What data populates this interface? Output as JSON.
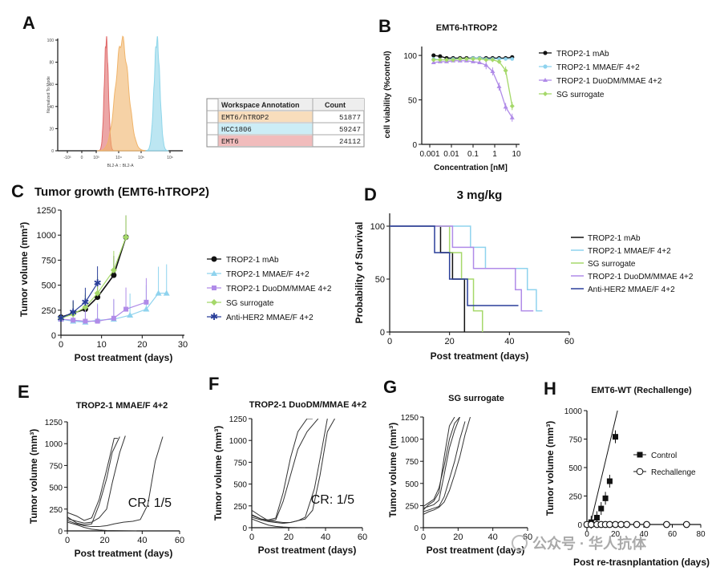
{
  "colors": {
    "black": "#111111",
    "cyan": "#8fd3ee",
    "purple": "#b08be8",
    "green": "#a5d86a",
    "navy": "#2a3f9a",
    "red": "#e06a6a",
    "orange": "#f0b46a",
    "lightblue": "#8fd6ea"
  },
  "labels": {
    "A": "A",
    "B": "B",
    "C": "C",
    "D": "D",
    "E": "E",
    "F": "F",
    "G": "G",
    "H": "H"
  },
  "watermark": "公众号 · 华人抗体",
  "chart_data": [
    {
      "id": "A",
      "type": "histogram",
      "ylabel": "Normalized To Mode",
      "xlabel": "BL2-A :: BL2-A",
      "yticks": [
        "0",
        "20",
        "40",
        "60",
        "80",
        "100"
      ],
      "xticks": [
        "-10³",
        "0",
        "10³",
        "10⁴",
        "10⁵",
        "10⁶"
      ],
      "table": {
        "headers": [
          "Workspace Annotation",
          "Count"
        ],
        "rows": [
          {
            "name": "EMT6/hTROP2",
            "count": "51877",
            "color": "#f0b46a"
          },
          {
            "name": "HCC1806",
            "count": "59247",
            "color": "#8fd6ea"
          },
          {
            "name": "EMT6",
            "count": "24112",
            "color": "#e06a6a"
          }
        ]
      },
      "peaks": [
        {
          "name": "EMT6",
          "center_log": 3.45,
          "width_log": 0.09,
          "color": "#e06a6a"
        },
        {
          "name": "EMT6/hTROP2",
          "center_log": 4.15,
          "width_log": 0.28,
          "color": "#f0b46a"
        },
        {
          "name": "HCC1806",
          "center_log": 5.55,
          "width_log": 0.1,
          "color": "#8fd6ea"
        }
      ]
    },
    {
      "id": "B",
      "type": "line",
      "title": "EMT6-hTROP2",
      "xlabel": "Concentration [nM]",
      "ylabel": "cell viability (%control)",
      "xscale": "log",
      "xlim": [
        0.001,
        10
      ],
      "ylim": [
        0,
        110
      ],
      "xticks": [
        "0.001",
        "0.01",
        "0.1",
        "1",
        "10"
      ],
      "yticks": [
        "0",
        "50",
        "100"
      ],
      "x": [
        0.0015,
        0.003,
        0.006,
        0.012,
        0.025,
        0.05,
        0.1,
        0.2,
        0.4,
        0.8,
        1.6,
        3.2,
        6.4
      ],
      "series": [
        {
          "name": "TROP2-1 mAb",
          "color": "#111111",
          "values": [
            100,
            99,
            97,
            97,
            97,
            97,
            97,
            97,
            97,
            97,
            97,
            97,
            98
          ]
        },
        {
          "name": "TROP2-1 MMAE/F 4+2",
          "color": "#8fd3ee",
          "values": [
            96,
            95,
            95,
            96,
            96,
            96,
            97,
            97,
            96,
            96,
            96,
            96,
            96
          ]
        },
        {
          "name": "TROP2-1 DuoDM/MMAE 4+2",
          "color": "#b08be8",
          "values": [
            92,
            93,
            93,
            94,
            94,
            94,
            93,
            92,
            89,
            82,
            65,
            42,
            30
          ]
        },
        {
          "name": "SG surrogate",
          "color": "#a5d86a",
          "values": [
            95,
            95,
            95,
            95,
            96,
            96,
            96,
            96,
            95,
            95,
            93,
            83,
            43
          ]
        }
      ]
    },
    {
      "id": "C",
      "type": "line",
      "title": "Tumor growth (EMT6-hTROP2)",
      "xlabel": "Post treatment (days)",
      "ylabel": "Tumor volume (mm³)",
      "xlim": [
        0,
        30
      ],
      "ylim": [
        0,
        1250
      ],
      "xticks": [
        "0",
        "10",
        "20",
        "30"
      ],
      "yticks": [
        "0",
        "250",
        "500",
        "750",
        "1000",
        "1250"
      ],
      "series": [
        {
          "name": "TROP2-1 mAb",
          "color": "#111111",
          "x": [
            0,
            3,
            6,
            9,
            13,
            16
          ],
          "values": [
            180,
            220,
            260,
            380,
            600,
            980
          ]
        },
        {
          "name": "TROP2-1 MMAE/F 4+2",
          "color": "#8fd3ee",
          "x": [
            0,
            3,
            6,
            9,
            13,
            17,
            21,
            24,
            26
          ],
          "values": [
            160,
            140,
            130,
            150,
            160,
            200,
            260,
            420,
            420
          ]
        },
        {
          "name": "TROP2-1 DuoDM/MMAE 4+2",
          "color": "#b08be8",
          "x": [
            0,
            3,
            6,
            9,
            13,
            16,
            21
          ],
          "values": [
            160,
            150,
            140,
            140,
            170,
            260,
            330
          ]
        },
        {
          "name": "SG surrogate",
          "color": "#a5d86a",
          "x": [
            0,
            3,
            6,
            9,
            13,
            16
          ],
          "values": [
            170,
            210,
            280,
            420,
            650,
            980
          ]
        },
        {
          "name": "Anti-HER2 MMAE/F 4+2",
          "color": "#2a3f9a",
          "x": [
            0,
            3,
            6,
            9
          ],
          "values": [
            170,
            230,
            330,
            520
          ]
        }
      ]
    },
    {
      "id": "D",
      "type": "survival",
      "title": "3  mg/kg",
      "xlabel": "Post treatment (days)",
      "ylabel": "Probability of Survival",
      "xlim": [
        0,
        60
      ],
      "ylim": [
        0,
        100
      ],
      "xticks": [
        "0",
        "20",
        "40",
        "60"
      ],
      "yticks": [
        "0",
        "50",
        "100"
      ],
      "series": [
        {
          "name": "TROP2-1 mAb",
          "color": "#111111",
          "steps": [
            [
              0,
              100
            ],
            [
              17,
              100
            ],
            [
              17,
              75
            ],
            [
              21,
              75
            ],
            [
              21,
              50
            ],
            [
              25,
              50
            ],
            [
              25,
              0
            ]
          ]
        },
        {
          "name": "TROP2-1 MMAE/F 4+2",
          "color": "#8fd3ee",
          "steps": [
            [
              0,
              100
            ],
            [
              27,
              100
            ],
            [
              27,
              80
            ],
            [
              32,
              80
            ],
            [
              32,
              60
            ],
            [
              39,
              60
            ],
            [
              39,
              60
            ],
            [
              46,
              60
            ],
            [
              46,
              40
            ],
            [
              49,
              40
            ],
            [
              49,
              20
            ],
            [
              51,
              20
            ]
          ]
        },
        {
          "name": "SG surrogate",
          "color": "#a5d86a",
          "steps": [
            [
              0,
              100
            ],
            [
              20,
              100
            ],
            [
              20,
              75
            ],
            [
              24,
              75
            ],
            [
              24,
              50
            ],
            [
              28,
              50
            ],
            [
              28,
              20
            ],
            [
              31,
              20
            ],
            [
              31,
              0
            ]
          ]
        },
        {
          "name": "TROP2-1 DuoDM/MMAE 4+2",
          "color": "#b08be8",
          "steps": [
            [
              0,
              100
            ],
            [
              21,
              100
            ],
            [
              21,
              80
            ],
            [
              28,
              80
            ],
            [
              28,
              60
            ],
            [
              42,
              60
            ],
            [
              42,
              40
            ],
            [
              44,
              40
            ],
            [
              44,
              20
            ],
            [
              48,
              20
            ]
          ]
        },
        {
          "name": "Anti-HER2 MMAE/F 4+2",
          "color": "#2a3f9a",
          "steps": [
            [
              0,
              100
            ],
            [
              15,
              100
            ],
            [
              15,
              75
            ],
            [
              20,
              75
            ],
            [
              20,
              50
            ],
            [
              26,
              50
            ],
            [
              26,
              25
            ],
            [
              43,
              25
            ]
          ]
        }
      ]
    },
    {
      "id": "E",
      "type": "line",
      "title": "TROP2-1 MMAE/F 4+2",
      "xlabel": "Post treatment (days)",
      "ylabel": "Tumor volume (mm³)",
      "xlim": [
        0,
        60
      ],
      "ylim": [
        0,
        1250
      ],
      "xticks": [
        "0",
        "20",
        "40",
        "60"
      ],
      "yticks": [
        "0",
        "250",
        "500",
        "750",
        "1000",
        "1250"
      ],
      "annotation": "CR: 1/5",
      "lines": [
        {
          "x": [
            0,
            5,
            9,
            13,
            17,
            21,
            25,
            27
          ],
          "values": [
            210,
            170,
            120,
            150,
            360,
            700,
            1060,
            1060
          ]
        },
        {
          "x": [
            0,
            5,
            9,
            13,
            17,
            21,
            24,
            28
          ],
          "values": [
            160,
            90,
            70,
            80,
            300,
            600,
            900,
            1080
          ]
        },
        {
          "x": [
            0,
            5,
            9,
            13,
            17,
            21,
            24,
            28,
            31
          ],
          "values": [
            140,
            110,
            90,
            100,
            150,
            250,
            550,
            900,
            1090
          ]
        },
        {
          "x": [
            0,
            5,
            9,
            13,
            17,
            21,
            25,
            30,
            35,
            39,
            43,
            47,
            51
          ],
          "values": [
            120,
            80,
            60,
            50,
            50,
            60,
            80,
            100,
            110,
            130,
            300,
            800,
            1080
          ]
        },
        {
          "x": [
            0,
            5,
            9,
            13,
            17,
            21,
            25,
            29,
            33,
            37
          ],
          "values": [
            100,
            70,
            40,
            20,
            10,
            5,
            3,
            2,
            1,
            0
          ]
        }
      ]
    },
    {
      "id": "F",
      "type": "line",
      "title": "TROP2-1 DuoDM/MMAE 4+2",
      "xlabel": "Post treatment (days)",
      "ylabel": "Tumor volume (mm³)",
      "xlim": [
        0,
        60
      ],
      "ylim": [
        0,
        1250
      ],
      "xticks": [
        "0",
        "20",
        "40",
        "60"
      ],
      "yticks": [
        "0",
        "250",
        "500",
        "750",
        "1000",
        "1250"
      ],
      "annotation": "CR: 1/5",
      "lines": [
        {
          "x": [
            0,
            5,
            9,
            13,
            17,
            21,
            25,
            30,
            36
          ],
          "values": [
            200,
            130,
            80,
            90,
            300,
            600,
            900,
            1100,
            1250
          ]
        },
        {
          "x": [
            0,
            5,
            9,
            13,
            17,
            21,
            25,
            30,
            33
          ],
          "values": [
            150,
            100,
            90,
            110,
            400,
            800,
            1100,
            1250,
            1250
          ]
        },
        {
          "x": [
            0,
            5,
            9,
            13,
            17,
            21,
            25,
            29,
            34,
            38,
            41
          ],
          "values": [
            140,
            100,
            80,
            70,
            60,
            60,
            80,
            120,
            450,
            900,
            1250
          ]
        },
        {
          "x": [
            0,
            5,
            9,
            13,
            17,
            21,
            25,
            29,
            33,
            37,
            41,
            45
          ],
          "values": [
            120,
            90,
            70,
            60,
            50,
            60,
            80,
            100,
            200,
            600,
            1100,
            1250
          ]
        },
        {
          "x": [
            0,
            5,
            9,
            13,
            17,
            21,
            25,
            29
          ],
          "values": [
            100,
            60,
            30,
            15,
            8,
            3,
            1,
            0
          ]
        }
      ]
    },
    {
      "id": "G",
      "type": "line",
      "title": "SG surrogate",
      "xlabel": "Post treatment (days)",
      "ylabel": "Tumor volume (mm³)",
      "xlim": [
        0,
        60
      ],
      "ylim": [
        0,
        1250
      ],
      "xticks": [
        "0",
        "20",
        "40",
        "60"
      ],
      "yticks": [
        "0",
        "250",
        "500",
        "750",
        "1000",
        "1250"
      ],
      "lines": [
        {
          "x": [
            0,
            3,
            6,
            9,
            12,
            15,
            18
          ],
          "values": [
            200,
            260,
            300,
            400,
            800,
            1150,
            1250
          ]
        },
        {
          "x": [
            0,
            3,
            6,
            9,
            12,
            15,
            18,
            21
          ],
          "values": [
            220,
            240,
            260,
            310,
            600,
            900,
            1100,
            1250
          ]
        },
        {
          "x": [
            0,
            3,
            6,
            9,
            12,
            15,
            18,
            21,
            24
          ],
          "values": [
            180,
            200,
            220,
            240,
            350,
            550,
            750,
            1000,
            1200
          ]
        },
        {
          "x": [
            0,
            3,
            6,
            9,
            12,
            15,
            18,
            21,
            24,
            27
          ],
          "values": [
            150,
            180,
            200,
            230,
            290,
            420,
            600,
            800,
            1050,
            1250
          ]
        },
        {
          "x": [
            0,
            3,
            6,
            9,
            12,
            15,
            18,
            21
          ],
          "values": [
            240,
            280,
            320,
            450,
            700,
            1000,
            1180,
            1250
          ]
        }
      ]
    },
    {
      "id": "H",
      "type": "line",
      "title": "EMT6-WT (Rechallenge)",
      "xlabel": "Post re-trasnplantation (days)",
      "ylabel": "Tumor volume (mm³)",
      "xlim": [
        0,
        80
      ],
      "ylim": [
        0,
        1000
      ],
      "xticks": [
        "0",
        "20",
        "40",
        "60",
        "80"
      ],
      "yticks": [
        "0",
        "250",
        "500",
        "750",
        "1000"
      ],
      "series": [
        {
          "name": "Control",
          "color": "#111111",
          "marker": "square",
          "x": [
            0,
            3,
            7,
            10,
            13,
            16,
            20
          ],
          "values": [
            0,
            20,
            60,
            140,
            230,
            380,
            770
          ]
        },
        {
          "name": "Rechallenge",
          "color": "#111111",
          "marker": "circle",
          "x": [
            0,
            3,
            7,
            10,
            13,
            16,
            20,
            24,
            28,
            35,
            42,
            56,
            70
          ],
          "values": [
            0,
            0,
            0,
            0,
            0,
            0,
            0,
            0,
            0,
            0,
            0,
            0,
            0
          ]
        }
      ]
    }
  ]
}
